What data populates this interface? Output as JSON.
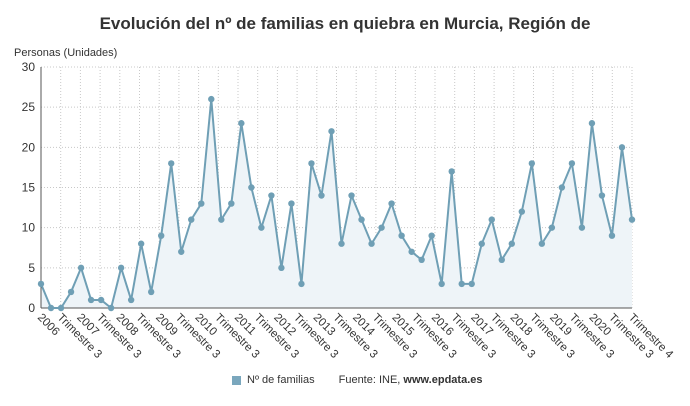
{
  "chart_data": {
    "type": "area",
    "title": "Evolución del nº de familias en quiebra en Murcia, Región de",
    "ylabel": "Personas (Unidades)",
    "xlabel": "",
    "ylim": [
      0,
      30
    ],
    "yticks": [
      0,
      5,
      10,
      15,
      20,
      25,
      30
    ],
    "grid": true,
    "legend_position": "bottom",
    "colors": {
      "line": "#6f9fb5",
      "marker": "#6f9fb5",
      "fill": "#eef4f8",
      "grid": "#c8c8c8"
    },
    "x_tick_labels": [
      "2006",
      "Trimestre 3",
      "2007",
      "Trimestre 3",
      "2008",
      "Trimestre 3",
      "2009",
      "Trimestre 3",
      "2010",
      "Trimestre 3",
      "2011",
      "Trimestre 3",
      "2012",
      "Trimestre 3",
      "2013",
      "Trimestre 3",
      "2014",
      "Trimestre 3",
      "2015",
      "Trimestre 3",
      "2016",
      "Trimestre 3",
      "2017",
      "Trimestre 3",
      "2018",
      "Trimestre 3",
      "2019",
      "Trimestre 3",
      "2020",
      "Trimestre 3",
      "Trimestre 4"
    ],
    "series": [
      {
        "name": "Nº de familias",
        "values": [
          3,
          0,
          0,
          2,
          5,
          1,
          1,
          0,
          5,
          1,
          8,
          2,
          9,
          18,
          7,
          11,
          13,
          26,
          11,
          13,
          23,
          15,
          10,
          14,
          5,
          13,
          3,
          18,
          14,
          22,
          8,
          14,
          11,
          8,
          10,
          13,
          9,
          7,
          6,
          9,
          3,
          17,
          3,
          3,
          8,
          11,
          6,
          8,
          12,
          18,
          8,
          10,
          15,
          18,
          10,
          23,
          14,
          9,
          20,
          11
        ]
      }
    ]
  },
  "legend": {
    "series_label": "Nº de familias"
  },
  "footer": {
    "source_prefix": "Fuente: INE, ",
    "source_site": "www.epdata.es"
  }
}
